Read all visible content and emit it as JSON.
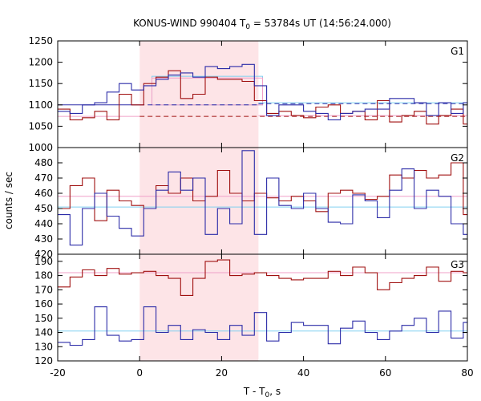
{
  "chart_data": {
    "type": "line",
    "title": "KONUS-WIND 990404 T",
    "title_sub": "0",
    "title_rest": " = 53784s UT (14:56:24.000)",
    "xlabel": "T - T",
    "xlabel_sub": "0",
    "xlabel_rest": ", s",
    "ylabel": "counts / sec",
    "xlim": [
      -20,
      80
    ],
    "x_ticks": [
      -20,
      0,
      20,
      40,
      60,
      80
    ],
    "shaded_interval": [
      0,
      29
    ],
    "colors": {
      "shade": "#fde4e7",
      "red": "#a01010",
      "blue": "#2c2ca8",
      "pink": "#f0a0c8",
      "cyan": "#80d0f0"
    },
    "panels": [
      {
        "label": "G1",
        "ylim": [
          1000,
          1250
        ],
        "y_ticks": [
          1000,
          1050,
          1100,
          1150,
          1200,
          1250
        ],
        "bin_edges": [
          -20,
          -17,
          -14,
          -11,
          -8,
          -5,
          -2,
          1,
          4,
          7,
          10,
          13,
          16,
          19,
          22,
          25,
          28,
          31,
          34,
          37,
          40,
          43,
          46,
          49,
          52,
          55,
          58,
          61,
          64,
          67,
          70,
          73,
          76,
          79,
          80
        ],
        "series": [
          {
            "color": "red",
            "values": [
              1090,
              1065,
              1070,
              1085,
              1065,
              1125,
              1100,
              1150,
              1165,
              1180,
              1115,
              1125,
              1165,
              1160,
              1160,
              1155,
              1110,
              1080,
              1085,
              1075,
              1070,
              1095,
              1100,
              1080,
              1085,
              1065,
              1110,
              1060,
              1075,
              1085,
              1055,
              1075,
              1090,
              1055
            ]
          },
          {
            "color": "blue",
            "values": [
              1085,
              1080,
              1100,
              1105,
              1130,
              1150,
              1135,
              1145,
              1160,
              1170,
              1175,
              1165,
              1190,
              1185,
              1190,
              1195,
              1145,
              1075,
              1100,
              1100,
              1085,
              1080,
              1065,
              1080,
              1085,
              1090,
              1090,
              1115,
              1115,
              1105,
              1075,
              1105,
              1080,
              1105
            ]
          }
        ],
        "bg_lines": [
          {
            "color": "blue",
            "dashed": false,
            "x": [
              -20,
              0
            ],
            "y": 1100
          },
          {
            "color": "blue",
            "dashed": true,
            "x": [
              0,
              29
            ],
            "y": 1100
          },
          {
            "color": "blue",
            "dashed": true,
            "x": [
              29,
              80
            ],
            "y": 1103
          },
          {
            "color": "red",
            "dashed": true,
            "x": [
              0,
              80
            ],
            "y": 1073
          },
          {
            "color": "pink",
            "dashed": false,
            "x": [
              -20,
              0
            ],
            "y": 1073
          },
          {
            "color": "pink",
            "dashed": false,
            "x": [
              29,
              80
            ],
            "y": 1075
          },
          {
            "color": "cyan",
            "dashed": false,
            "x": [
              29,
              80
            ],
            "y": 1105
          }
        ],
        "boxes": [
          {
            "color": "cyan",
            "x": [
              3,
              30
            ],
            "y": [
              1100,
              1167
            ]
          },
          {
            "color": "pink",
            "x": [
              3,
              30
            ],
            "y": [
              1100,
              1163
            ]
          }
        ]
      },
      {
        "label": "G2",
        "ylim": [
          420,
          490
        ],
        "y_ticks": [
          420,
          430,
          440,
          450,
          460,
          470,
          480
        ],
        "bin_edges": [
          -20,
          -17,
          -14,
          -11,
          -8,
          -5,
          -2,
          1,
          4,
          7,
          10,
          13,
          16,
          19,
          22,
          25,
          28,
          31,
          34,
          37,
          40,
          43,
          46,
          49,
          52,
          55,
          58,
          61,
          64,
          67,
          70,
          73,
          76,
          79,
          80
        ],
        "series": [
          {
            "color": "red",
            "values": [
              450,
              465,
              470,
              442,
              462,
              455,
              452,
              450,
              465,
              460,
              470,
              455,
              458,
              475,
              460,
              455,
              460,
              457,
              455,
              458,
              455,
              448,
              460,
              462,
              460,
              456,
              458,
              472,
              470,
              475,
              470,
              472,
              480,
              446
            ]
          },
          {
            "color": "blue",
            "values": [
              446,
              426,
              450,
              460,
              445,
              437,
              432,
              450,
              462,
              474,
              462,
              470,
              433,
              450,
              440,
              488,
              433,
              470,
              452,
              450,
              460,
              450,
              441,
              440,
              459,
              455,
              444,
              462,
              476,
              450,
              462,
              458,
              440,
              433
            ]
          }
        ],
        "bg_lines": [
          {
            "color": "pink",
            "dashed": false,
            "x": [
              -20,
              80
            ],
            "y": 458
          },
          {
            "color": "cyan",
            "dashed": false,
            "x": [
              -20,
              80
            ],
            "y": 451
          }
        ],
        "boxes": []
      },
      {
        "label": "G3",
        "ylim": [
          120,
          195
        ],
        "y_ticks": [
          120,
          130,
          140,
          150,
          160,
          170,
          180,
          190
        ],
        "bin_edges": [
          -20,
          -17,
          -14,
          -11,
          -8,
          -5,
          -2,
          1,
          4,
          7,
          10,
          13,
          16,
          19,
          22,
          25,
          28,
          31,
          34,
          37,
          40,
          43,
          46,
          49,
          52,
          55,
          58,
          61,
          64,
          67,
          70,
          73,
          76,
          79,
          80
        ],
        "series": [
          {
            "color": "red",
            "values": [
              172,
              179,
              184,
              180,
              185,
              181,
              182,
              183,
              180,
              178,
              166,
              178,
              190,
              191,
              180,
              181,
              182,
              180,
              178,
              177,
              178,
              178,
              183,
              180,
              186,
              182,
              170,
              175,
              178,
              180,
              186,
              176,
              183,
              182
            ]
          },
          {
            "color": "blue",
            "values": [
              133,
              131,
              135,
              158,
              138,
              134,
              135,
              158,
              140,
              145,
              135,
              142,
              140,
              135,
              145,
              138,
              154,
              134,
              140,
              147,
              145,
              145,
              132,
              143,
              148,
              140,
              135,
              141,
              145,
              150,
              140,
              155,
              136,
              147
            ]
          }
        ],
        "bg_lines": [
          {
            "color": "pink",
            "dashed": false,
            "x": [
              -20,
              80
            ],
            "y": 182
          },
          {
            "color": "cyan",
            "dashed": false,
            "x": [
              -20,
              80
            ],
            "y": 141
          }
        ],
        "boxes": []
      }
    ]
  }
}
